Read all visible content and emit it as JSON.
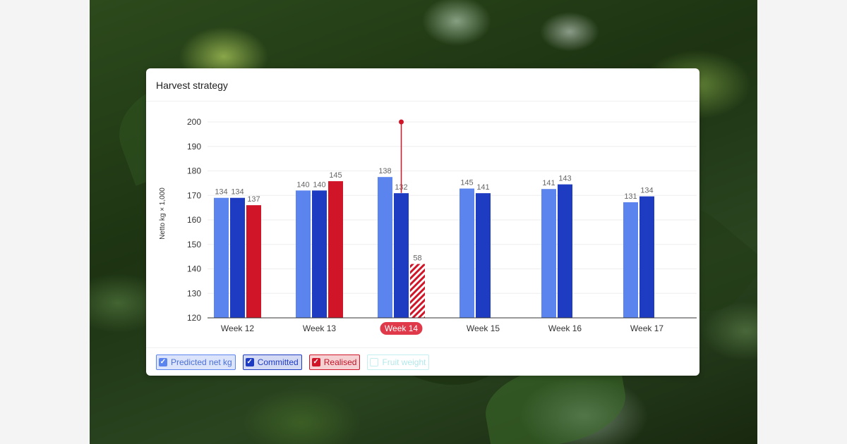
{
  "card": {
    "title": "Harvest strategy"
  },
  "colors": {
    "predicted": "#5b84ef",
    "committed": "#1e3cc2",
    "realised": "#d01528",
    "fruit": "#5ed5d8",
    "selected_week": "#e03a4a"
  },
  "legend": [
    {
      "key": "predicted",
      "label": "Predicted net kg",
      "checked": true,
      "check_icon": "checkmark-icon",
      "bg": "#dbe4fb",
      "border": "#5b84ef",
      "text": "#4b70d6"
    },
    {
      "key": "committed",
      "label": "Committed",
      "checked": true,
      "check_icon": "checkmark-icon",
      "bg": "#d5daf4",
      "border": "#1e3cc2",
      "text": "#1e3cc2"
    },
    {
      "key": "realised",
      "label": "Realised",
      "checked": true,
      "check_icon": "checkmark-icon",
      "bg": "#f6d1d4",
      "border": "#d01528",
      "text": "#c01426"
    },
    {
      "key": "fruit",
      "label": "Fruit weight",
      "checked": false,
      "check_icon": "",
      "bg": "#ffffff",
      "border": "#c3eff0",
      "text": "#b4e8ea"
    }
  ],
  "chart_data": {
    "type": "bar",
    "ylabel": "Netto kg × 1,000",
    "xlabel": "",
    "ylim": [
      120,
      200
    ],
    "yticks": [
      120,
      130,
      140,
      150,
      160,
      170,
      180,
      190,
      200
    ],
    "grid": true,
    "legend_position": "bottom-left",
    "categories": [
      "Week 12",
      "Week 13",
      "Week 14",
      "Week 15",
      "Week 16",
      "Week 17"
    ],
    "selected_category": "Week 14",
    "series": [
      {
        "key": "predicted",
        "name": "Predicted net kg",
        "values": [
          169,
          172,
          177.5,
          172.8,
          172.6,
          167.2
        ],
        "labels": [
          "134",
          "140",
          "138",
          "145",
          "141",
          "131"
        ]
      },
      {
        "key": "committed",
        "name": "Committed",
        "values": [
          169,
          172,
          170.9,
          170.9,
          174.5,
          169.6
        ],
        "labels": [
          "134",
          "140",
          "132",
          "141",
          "143",
          "134"
        ]
      },
      {
        "key": "realised",
        "name": "Realised",
        "values": [
          166,
          175.8,
          142,
          null,
          null,
          null
        ],
        "labels": [
          "137",
          "145",
          "58",
          null,
          null,
          null
        ],
        "partial": [
          false,
          false,
          true,
          false,
          false,
          false
        ]
      }
    ],
    "marker": {
      "category": "Week 14",
      "from": 171,
      "to": 200
    }
  }
}
